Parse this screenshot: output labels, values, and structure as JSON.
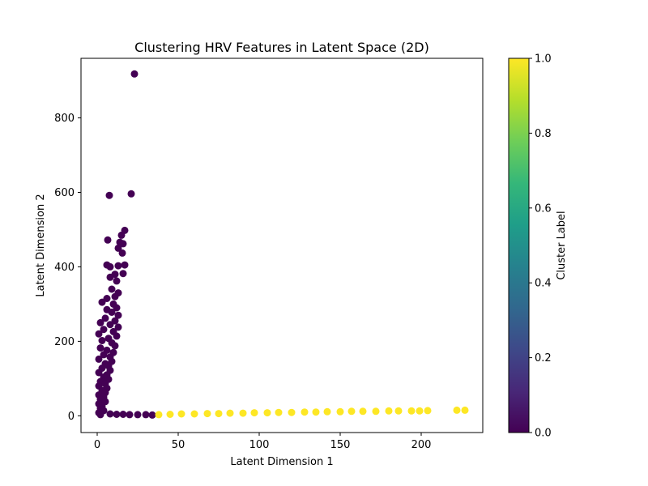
{
  "chart_data": {
    "type": "scatter",
    "title": "Clustering HRV Features in Latent Space (2D)",
    "xlabel": "Latent Dimension 1",
    "ylabel": "Latent Dimension 2",
    "xlim": [
      -10,
      238
    ],
    "ylim": [
      -45,
      960
    ],
    "x_ticks": [
      0,
      50,
      100,
      150,
      200
    ],
    "y_ticks": [
      0,
      200,
      400,
      600,
      800
    ],
    "grid": false,
    "colormap": "viridis",
    "colorbar": {
      "label": "Cluster Label",
      "range": [
        0.0,
        1.0
      ],
      "ticks": [
        "0.0",
        "0.2",
        "0.4",
        "0.6",
        "0.8",
        "1.0"
      ],
      "gradient_colors": [
        "#440154",
        "#482878",
        "#3e4989",
        "#31688e",
        "#26828e",
        "#1f9e89",
        "#35b779",
        "#6ece58",
        "#b5de2b",
        "#fde725"
      ]
    },
    "clusters": [
      {
        "label": 0,
        "color": "#440154",
        "points": [
          [
            23,
            918
          ],
          [
            21,
            596
          ],
          [
            7.5,
            592
          ],
          [
            17,
            498
          ],
          [
            6.5,
            472
          ],
          [
            15,
            485
          ],
          [
            14,
            466
          ],
          [
            16,
            462
          ],
          [
            13,
            450
          ],
          [
            15.5,
            437
          ],
          [
            6,
            405
          ],
          [
            17,
            405
          ],
          [
            13,
            403
          ],
          [
            8,
            400
          ],
          [
            16,
            382
          ],
          [
            11,
            380
          ],
          [
            8,
            372
          ],
          [
            12,
            362
          ],
          [
            9,
            340
          ],
          [
            13,
            330
          ],
          [
            11,
            320
          ],
          [
            6,
            315
          ],
          [
            3,
            305
          ],
          [
            10,
            300
          ],
          [
            12,
            290
          ],
          [
            6,
            285
          ],
          [
            9,
            278
          ],
          [
            13,
            270
          ],
          [
            5,
            262
          ],
          [
            11,
            255
          ],
          [
            2,
            250
          ],
          [
            8,
            245
          ],
          [
            13,
            238
          ],
          [
            4,
            232
          ],
          [
            10,
            226
          ],
          [
            1,
            220
          ],
          [
            12,
            214
          ],
          [
            7,
            208
          ],
          [
            3,
            202
          ],
          [
            9,
            196
          ],
          [
            11,
            188
          ],
          [
            2,
            182
          ],
          [
            6,
            176
          ],
          [
            10,
            170
          ],
          [
            4,
            164
          ],
          [
            8,
            158
          ],
          [
            1,
            152
          ],
          [
            9,
            146
          ],
          [
            5,
            140
          ],
          [
            7,
            134
          ],
          [
            3,
            128
          ],
          [
            8,
            122
          ],
          [
            1,
            116
          ],
          [
            6,
            110
          ],
          [
            4,
            104
          ],
          [
            7,
            98
          ],
          [
            2,
            92
          ],
          [
            5,
            86
          ],
          [
            1,
            80
          ],
          [
            6,
            74
          ],
          [
            3,
            68
          ],
          [
            5,
            62
          ],
          [
            1,
            56
          ],
          [
            4,
            50
          ],
          [
            2,
            44
          ],
          [
            5,
            38
          ],
          [
            1,
            32
          ],
          [
            3,
            26
          ],
          [
            2,
            20
          ],
          [
            4,
            14
          ],
          [
            1,
            8
          ],
          [
            2,
            3
          ],
          [
            8,
            5
          ],
          [
            12,
            4
          ],
          [
            16,
            4
          ],
          [
            20,
            3
          ],
          [
            25,
            3
          ],
          [
            30,
            3
          ],
          [
            34,
            2
          ]
        ]
      },
      {
        "label": 1,
        "color": "#fde725",
        "points": [
          [
            38,
            3
          ],
          [
            45,
            4
          ],
          [
            52,
            5
          ],
          [
            60,
            5
          ],
          [
            68,
            6
          ],
          [
            75,
            6
          ],
          [
            82,
            7
          ],
          [
            90,
            7
          ],
          [
            97,
            8
          ],
          [
            105,
            8
          ],
          [
            112,
            9
          ],
          [
            120,
            9
          ],
          [
            128,
            10
          ],
          [
            135,
            10
          ],
          [
            142,
            11
          ],
          [
            150,
            11
          ],
          [
            157,
            12
          ],
          [
            164,
            12
          ],
          [
            172,
            12
          ],
          [
            180,
            13
          ],
          [
            186,
            13
          ],
          [
            194,
            13
          ],
          [
            199,
            13
          ],
          [
            204,
            14
          ],
          [
            222,
            15
          ],
          [
            227,
            15
          ]
        ]
      }
    ]
  }
}
